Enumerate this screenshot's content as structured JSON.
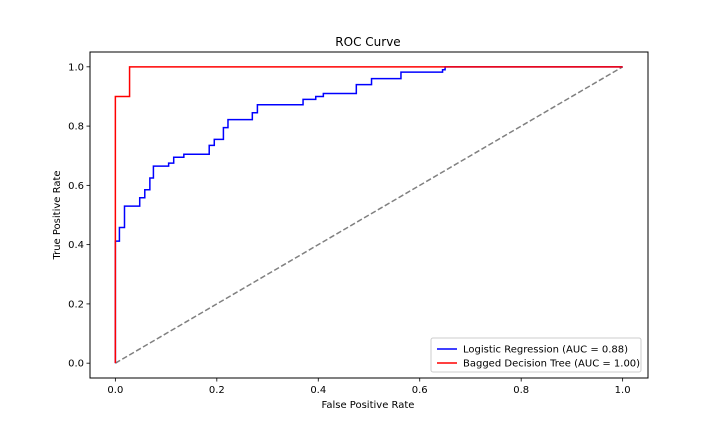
{
  "chart_data": {
    "type": "line",
    "title": "ROC Curve",
    "xlabel": "False Positive Rate",
    "ylabel": "True Positive Rate",
    "xlim": [
      -0.05,
      1.05
    ],
    "ylim": [
      -0.05,
      1.05
    ],
    "xticks": [
      {
        "value": 0.0,
        "label": "0.0"
      },
      {
        "value": 0.2,
        "label": "0.2"
      },
      {
        "value": 0.4,
        "label": "0.4"
      },
      {
        "value": 0.6,
        "label": "0.6"
      },
      {
        "value": 0.8,
        "label": "0.8"
      },
      {
        "value": 1.0,
        "label": "1.0"
      }
    ],
    "yticks": [
      {
        "value": 0.0,
        "label": "0.0"
      },
      {
        "value": 0.2,
        "label": "0.2"
      },
      {
        "value": 0.4,
        "label": "0.4"
      },
      {
        "value": 0.6,
        "label": "0.6"
      },
      {
        "value": 0.8,
        "label": "0.8"
      },
      {
        "value": 1.0,
        "label": "1.0"
      }
    ],
    "grid": false,
    "legend_position": "lower-right",
    "series": [
      {
        "name": "Logistic Regression (AUC = 0.88)",
        "color": "#0000ff",
        "style": "step",
        "x": [
          0.0,
          0.0,
          0.0,
          0.008,
          0.008,
          0.018,
          0.018,
          0.048,
          0.048,
          0.058,
          0.058,
          0.068,
          0.068,
          0.075,
          0.075,
          0.105,
          0.105,
          0.115,
          0.115,
          0.135,
          0.135,
          0.185,
          0.185,
          0.195,
          0.195,
          0.213,
          0.213,
          0.222,
          0.222,
          0.27,
          0.27,
          0.28,
          0.28,
          0.37,
          0.37,
          0.395,
          0.395,
          0.41,
          0.41,
          0.475,
          0.475,
          0.505,
          0.505,
          0.563,
          0.563,
          0.645,
          0.645,
          0.65,
          0.65,
          1.0
        ],
        "y": [
          0.0,
          0.0,
          0.412,
          0.412,
          0.458,
          0.458,
          0.53,
          0.53,
          0.558,
          0.558,
          0.585,
          0.585,
          0.625,
          0.625,
          0.665,
          0.665,
          0.675,
          0.675,
          0.695,
          0.695,
          0.705,
          0.705,
          0.735,
          0.735,
          0.755,
          0.755,
          0.795,
          0.795,
          0.822,
          0.822,
          0.845,
          0.845,
          0.872,
          0.872,
          0.89,
          0.89,
          0.9,
          0.9,
          0.91,
          0.91,
          0.94,
          0.94,
          0.96,
          0.96,
          0.982,
          0.982,
          0.99,
          0.99,
          1.0,
          1.0
        ]
      },
      {
        "name": "Bagged Decision Tree (AUC = 1.00)",
        "color": "#ff0000",
        "style": "step",
        "x": [
          0.0,
          0.0,
          0.028,
          0.028,
          1.0
        ],
        "y": [
          0.0,
          0.9,
          0.9,
          1.0,
          1.0
        ]
      }
    ],
    "reference_line": {
      "color": "#808080",
      "dash": "dashed",
      "x": [
        0.0,
        1.0
      ],
      "y": [
        0.0,
        1.0
      ]
    }
  }
}
